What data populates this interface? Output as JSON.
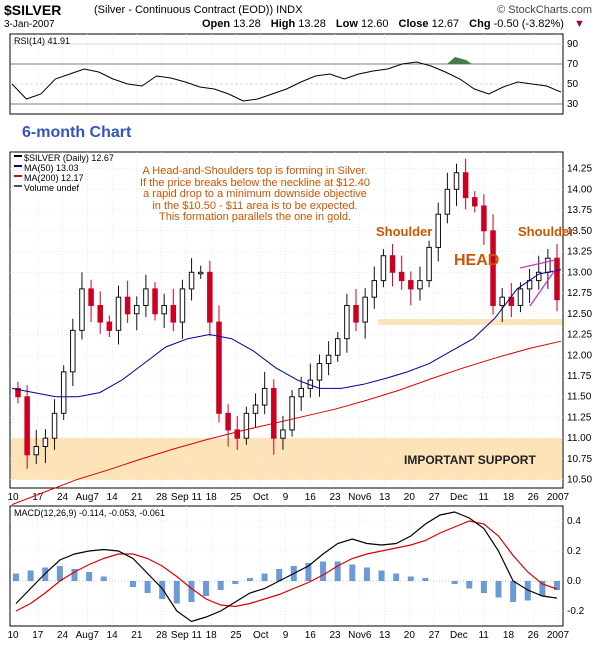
{
  "header": {
    "symbol": "$SILVER",
    "name": "(Silver - Continuous Contract (EOD)) INDX",
    "copyright": "© StockCharts.com",
    "date": "3-Jan-2007",
    "open_label": "Open",
    "open": "13.28",
    "high_label": "High",
    "high": "13.28",
    "low_label": "Low",
    "low": "12.60",
    "close_label": "Close",
    "close": "12.67",
    "chg_label": "Chg",
    "chg": "-0.50 (-3.82%)"
  },
  "rsi": {
    "label": "RSI(14) 41.91",
    "ticks": [
      "90",
      "70",
      "50",
      "30"
    ]
  },
  "price": {
    "legend": [
      "$SILVER (Daily) 12.67",
      "MA(50) 13.03",
      "MA(200) 12.17",
      "Volume undef"
    ],
    "ticks": [
      "14.25",
      "14.00",
      "13.75",
      "13.50",
      "13.25",
      "13.00",
      "12.75",
      "12.50",
      "12.25",
      "12.00",
      "11.75",
      "11.50",
      "11.25",
      "11.00",
      "10.75",
      "10.50"
    ]
  },
  "macd": {
    "label": "MACD(12,26,9) -0.114, -0.053, -0.061",
    "ticks": [
      "0.4",
      "0.2",
      "0.0",
      "-0.2"
    ]
  },
  "xaxis": [
    "10",
    "17",
    "24",
    "Aug7",
    "14",
    "21",
    "28",
    "Sep 11",
    "18",
    "25",
    "Oct",
    "9",
    "16",
    "23",
    "Nov6",
    "13",
    "20",
    "27",
    "Dec",
    "11",
    "18",
    "26",
    "2007"
  ],
  "annotations": {
    "chart_title": "6-month Chart",
    "note": [
      "A Head-and-Shoulders top is forming in Silver.",
      "If the price breaks below the neckline at $12.40",
      "a rapid drop to a minimum downside objective",
      "in the $10.50 - $11 area is to be expected.",
      "This formation parallels the one in gold."
    ],
    "shoulder_left": "Shoulder",
    "shoulder_right": "Shoulder",
    "head": "HEAD",
    "support": "IMPORTANT SUPPORT"
  },
  "colors": {
    "up": "#111111",
    "down": "#cc0022",
    "ma50": "#000099",
    "ma200": "#dd0000",
    "support": "#fde3b8",
    "title": "#3355bb",
    "ann": "#cc5500"
  },
  "chart_data": {
    "type": "line",
    "title": "$SILVER (Silver - Continuous Contract (EOD)) INDX",
    "x_labels": [
      "10",
      "17",
      "24",
      "Aug7",
      "14",
      "21",
      "28",
      "Sep 11",
      "18",
      "25",
      "Oct",
      "9",
      "16",
      "23",
      "Nov6",
      "13",
      "20",
      "27",
      "Dec",
      "11",
      "18",
      "26",
      "2007"
    ],
    "ylim": [
      10.4,
      14.45
    ],
    "series": [
      {
        "name": "$SILVER (Daily) 12.67",
        "close": [
          11.5,
          10.8,
          10.9,
          11.0,
          11.3,
          11.8,
          12.3,
          12.8,
          12.6,
          12.4,
          12.3,
          12.7,
          12.5,
          12.6,
          12.8,
          12.5,
          12.6,
          12.4,
          12.8,
          13.0,
          13.0,
          12.4,
          11.3,
          11.1,
          11.0,
          11.3,
          11.4,
          11.6,
          11.0,
          11.1,
          11.5,
          11.6,
          11.7,
          11.9,
          12.0,
          12.2,
          12.6,
          12.4,
          12.7,
          12.9,
          13.2,
          13.0,
          12.9,
          12.8,
          12.9,
          13.3,
          13.7,
          14.0,
          14.2,
          13.9,
          13.8,
          13.5,
          12.6,
          12.7,
          12.6,
          12.8,
          12.9,
          13.0,
          13.17,
          12.67
        ]
      },
      {
        "name": "MA(50) 13.03",
        "values": [
          11.6,
          11.55,
          11.5,
          11.5,
          11.55,
          11.7,
          11.9,
          12.1,
          12.2,
          12.25,
          12.2,
          12.05,
          11.85,
          11.7,
          11.6,
          11.6,
          11.65,
          11.72,
          11.8,
          11.9,
          12.05,
          12.2,
          12.45,
          12.8,
          12.98,
          13.03
        ]
      },
      {
        "name": "MA(200) 12.17",
        "values": [
          10.2,
          10.35,
          10.5,
          10.62,
          10.75,
          10.87,
          10.98,
          11.08,
          11.17,
          11.26,
          11.35,
          11.46,
          11.58,
          11.72,
          11.85,
          11.97,
          12.08,
          12.17
        ]
      }
    ],
    "rsi_values": [
      50,
      35,
      40,
      55,
      60,
      65,
      62,
      55,
      50,
      48,
      58,
      56,
      52,
      47,
      45,
      40,
      33,
      35,
      40,
      45,
      52,
      58,
      60,
      55,
      60,
      63,
      65,
      70,
      72,
      68,
      62,
      55,
      45,
      40,
      47,
      52,
      50,
      48,
      41.91
    ],
    "macd": {
      "macd": -0.114,
      "signal": -0.053,
      "histogram": -0.061,
      "ylim": [
        -0.3,
        0.5
      ]
    },
    "support_band": [
      10.5,
      11.0
    ],
    "neckline": 12.4
  }
}
